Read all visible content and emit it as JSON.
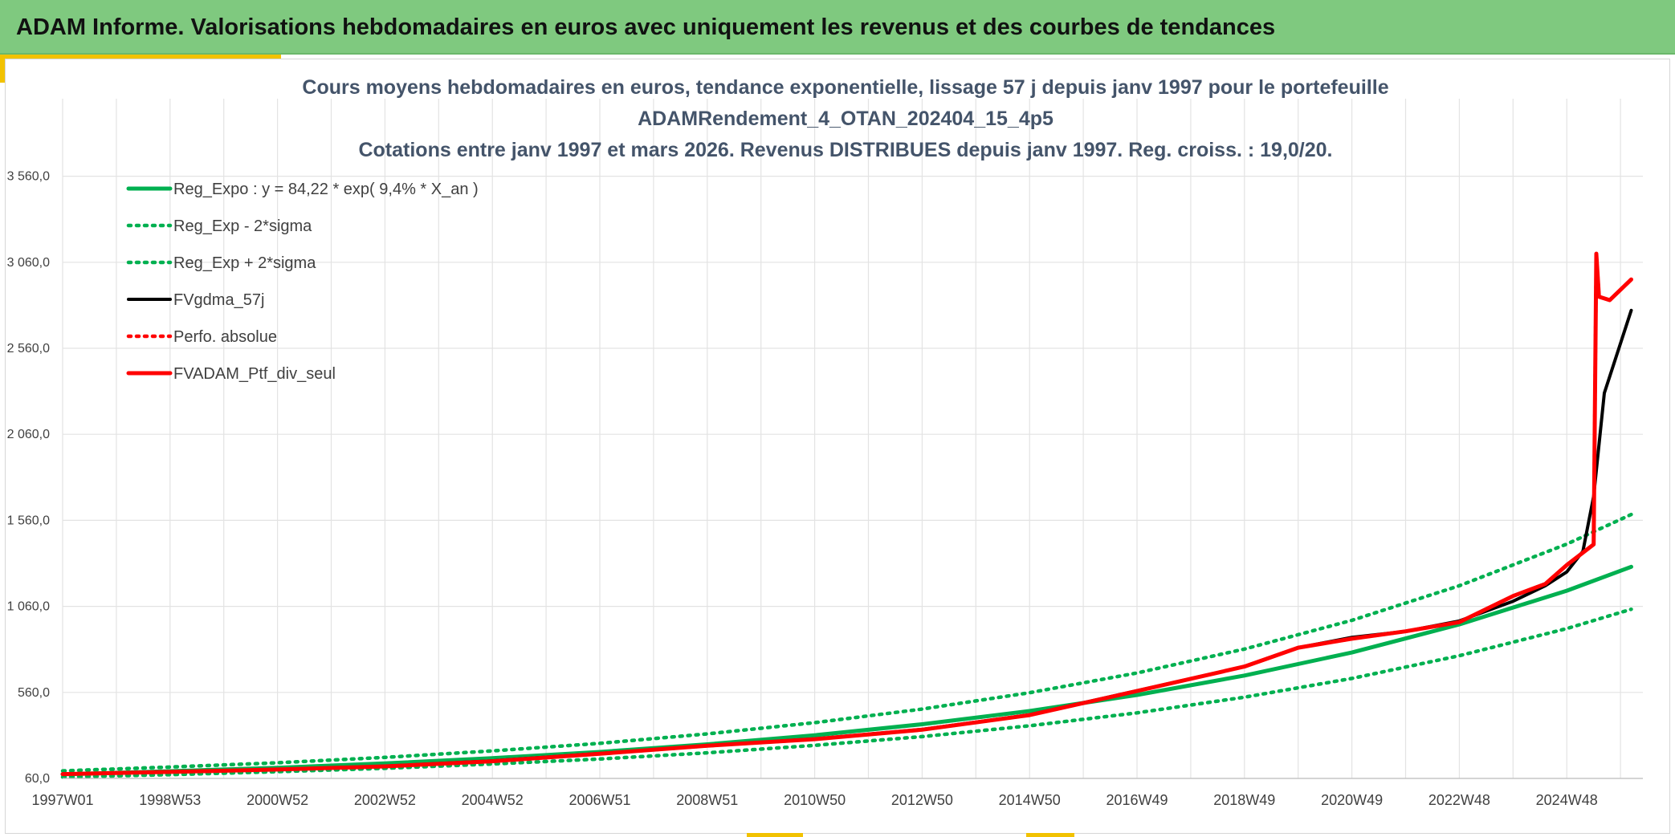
{
  "header": {
    "title": "ADAM Informe. Valorisations hebdomadaires en euros avec uniquement les revenus et des courbes de tendances"
  },
  "colors": {
    "header_bg": "#7fc97f",
    "accent": "#f2c200",
    "green_series": "#00b050",
    "black_series": "#000000",
    "red_series": "#ff0000",
    "grid": "#e3e3e3"
  },
  "chart_data": {
    "type": "line",
    "title_lines": [
      "Cours moyens hebdomadaires en euros, tendance exponentielle, lissage 57 j depuis janv 1997 pour le portefeuille",
      "ADAMRendement_4_OTAN_202404_15_4p5",
      "Cotations entre janv 1997 et mars 2026. Revenus DISTRIBUES depuis janv 1997. Reg. croiss. : 19,0/20."
    ],
    "x_start_year": 1997,
    "x_end_year": 2026.2,
    "x_ticks": [
      "1997W01",
      "1998W53",
      "2000W52",
      "2002W52",
      "2004W52",
      "2006W51",
      "2008W51",
      "2010W50",
      "2012W50",
      "2014W50",
      "2016W49",
      "2018W49",
      "2020W49",
      "2022W48",
      "2024W48"
    ],
    "y_ticks": [
      "60,0",
      "560,0",
      "1 060,0",
      "1 560,0",
      "2 060,0",
      "2 560,0",
      "3 060,0",
      "3 560,0"
    ],
    "y_tick_values": [
      60,
      560,
      1060,
      1560,
      2060,
      2560,
      3060,
      3560
    ],
    "ylim": [
      60,
      3560
    ],
    "grid": true,
    "legend_placement": "top-left",
    "series": [
      {
        "name": "Reg_Expo : y = 84,22 * exp( 9,4% *  X_an )",
        "style": "solid-green",
        "x": [
          1997,
          1999,
          2001,
          2003,
          2005,
          2007,
          2009,
          2011,
          2013,
          2015,
          2017,
          2019,
          2021,
          2023,
          2025,
          2026.2
        ],
        "y": [
          84,
          102,
          122,
          147,
          178,
          214,
          258,
          311,
          375,
          452,
          545,
          658,
          792,
          955,
          1151,
          1290
        ]
      },
      {
        "name": "Reg_Exp - 2*sigma",
        "style": "dotted-green",
        "x": [
          1997,
          1999,
          2001,
          2003,
          2005,
          2007,
          2009,
          2011,
          2013,
          2015,
          2017,
          2019,
          2021,
          2023,
          2025,
          2026.2
        ],
        "y": [
          68,
          82,
          99,
          119,
          144,
          173,
          209,
          252,
          303,
          366,
          441,
          532,
          641,
          773,
          931,
          1043
        ]
      },
      {
        "name": "Reg_Exp + 2*sigma",
        "style": "dotted-green",
        "x": [
          1997,
          1999,
          2001,
          2003,
          2005,
          2007,
          2009,
          2011,
          2013,
          2015,
          2017,
          2019,
          2021,
          2023,
          2025,
          2026.2
        ],
        "y": [
          104,
          126,
          151,
          182,
          220,
          264,
          319,
          384,
          463,
          558,
          673,
          812,
          979,
          1180,
          1422,
          1594
        ]
      },
      {
        "name": "FVgdma_57j",
        "style": "solid-black",
        "x": [
          1997,
          1999,
          2001,
          2003,
          2005,
          2007,
          2009,
          2011,
          2013,
          2015,
          2017,
          2019,
          2020,
          2021,
          2022,
          2023,
          2024,
          2024.6,
          2025,
          2025.3,
          2025.5,
          2025.7,
          2026.2
        ],
        "y": [
          85,
          97,
          112,
          131,
          162,
          205,
          250,
          290,
          345,
          430,
          570,
          710,
          820,
          880,
          915,
          975,
          1090,
          1180,
          1260,
          1380,
          1700,
          2300,
          2780
        ]
      },
      {
        "name": "Perfo. absolue",
        "style": "dotted-red",
        "x": [
          1997,
          1999,
          2001,
          2003,
          2005,
          2007,
          2009,
          2011,
          2013,
          2015,
          2017,
          2019,
          2020,
          2021,
          2022,
          2023,
          2024,
          2024.6,
          2025,
          2025.5,
          2025.55,
          2025.6,
          2025.8,
          2026.2
        ],
        "y": [
          85,
          98,
          112,
          130,
          160,
          203,
          250,
          288,
          343,
          428,
          568,
          710,
          820,
          872,
          915,
          968,
          1120,
          1190,
          1300,
          1420,
          3110,
          2860,
          2840,
          2960
        ]
      },
      {
        "name": "FVADAM_Ptf_div_seul",
        "style": "solid-red",
        "x": [
          1997,
          1999,
          2001,
          2003,
          2005,
          2007,
          2009,
          2011,
          2013,
          2015,
          2017,
          2019,
          2020,
          2021,
          2022,
          2023,
          2024,
          2024.6,
          2025,
          2025.5,
          2025.55,
          2025.6,
          2025.8,
          2026.2
        ],
        "y": [
          85,
          98,
          112,
          130,
          160,
          203,
          250,
          288,
          343,
          428,
          568,
          710,
          820,
          872,
          915,
          968,
          1120,
          1190,
          1300,
          1420,
          3110,
          2860,
          2840,
          2960
        ]
      }
    ]
  }
}
